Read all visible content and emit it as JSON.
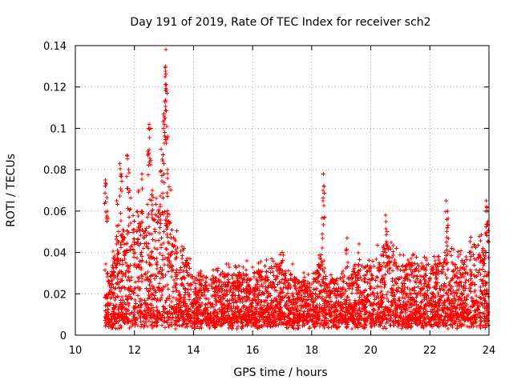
{
  "chart_data": {
    "type": "scatter",
    "title": "Day 191 of 2019, Rate Of TEC Index for receiver sch2",
    "xlabel": "GPS time / hours",
    "ylabel": "ROTI / TECUs",
    "xlim": [
      10,
      24
    ],
    "ylim": [
      0,
      0.14
    ],
    "xticks": [
      10,
      12,
      14,
      16,
      18,
      20,
      22,
      24
    ],
    "yticks": [
      0,
      0.02,
      0.04,
      0.06,
      0.08,
      0.1,
      0.12,
      0.14
    ],
    "xtick_labels": [
      "10",
      "12",
      "14",
      "16",
      "18",
      "20",
      "22",
      "24"
    ],
    "ytick_labels": [
      "0",
      "0.02",
      "0.04",
      "0.06",
      "0.08",
      "0.1",
      "0.12",
      "0.14"
    ],
    "grid": true,
    "marker": "+",
    "series": [
      {
        "name": "ROTI sch2",
        "color": "#ff0000",
        "envelope": [
          [
            11.0,
            0.035
          ],
          [
            11.2,
            0.03
          ],
          [
            11.4,
            0.045
          ],
          [
            11.6,
            0.05
          ],
          [
            11.8,
            0.055
          ],
          [
            12.0,
            0.05
          ],
          [
            12.2,
            0.055
          ],
          [
            12.4,
            0.058
          ],
          [
            12.6,
            0.06
          ],
          [
            12.8,
            0.062
          ],
          [
            13.0,
            0.07
          ],
          [
            13.2,
            0.065
          ],
          [
            13.4,
            0.045
          ],
          [
            13.6,
            0.04
          ],
          [
            13.8,
            0.035
          ],
          [
            14.0,
            0.03
          ],
          [
            14.5,
            0.028
          ],
          [
            15.0,
            0.03
          ],
          [
            15.5,
            0.03
          ],
          [
            16.0,
            0.03
          ],
          [
            16.5,
            0.032
          ],
          [
            17.0,
            0.035
          ],
          [
            17.5,
            0.028
          ],
          [
            18.0,
            0.025
          ],
          [
            18.3,
            0.04
          ],
          [
            18.5,
            0.03
          ],
          [
            19.0,
            0.028
          ],
          [
            19.5,
            0.035
          ],
          [
            20.0,
            0.035
          ],
          [
            20.5,
            0.045
          ],
          [
            21.0,
            0.035
          ],
          [
            21.5,
            0.035
          ],
          [
            22.0,
            0.032
          ],
          [
            22.5,
            0.038
          ],
          [
            23.0,
            0.035
          ],
          [
            23.5,
            0.045
          ],
          [
            24.0,
            0.04
          ]
        ],
        "peaks": [
          [
            11.02,
            0.075
          ],
          [
            11.05,
            0.073
          ],
          [
            11.08,
            0.06
          ],
          [
            11.4,
            0.065
          ],
          [
            11.5,
            0.083
          ],
          [
            11.55,
            0.078
          ],
          [
            11.75,
            0.087
          ],
          [
            11.8,
            0.08
          ],
          [
            11.85,
            0.07
          ],
          [
            12.15,
            0.07
          ],
          [
            12.25,
            0.078
          ],
          [
            12.45,
            0.089
          ],
          [
            12.48,
            0.1
          ],
          [
            12.5,
            0.102
          ],
          [
            12.55,
            0.1
          ],
          [
            12.6,
            0.07
          ],
          [
            12.9,
            0.09
          ],
          [
            12.95,
            0.085
          ],
          [
            12.98,
            0.1
          ],
          [
            13.0,
            0.107
          ],
          [
            13.02,
            0.113
          ],
          [
            13.04,
            0.125
          ],
          [
            13.05,
            0.13
          ],
          [
            13.06,
            0.138
          ],
          [
            13.08,
            0.121
          ],
          [
            13.1,
            0.117
          ],
          [
            13.12,
            0.08
          ],
          [
            18.4,
            0.078
          ],
          [
            18.42,
            0.072
          ],
          [
            18.38,
            0.07
          ],
          [
            18.35,
            0.049
          ],
          [
            20.5,
            0.058
          ],
          [
            20.52,
            0.055
          ],
          [
            20.55,
            0.05
          ],
          [
            22.55,
            0.065
          ],
          [
            22.6,
            0.06
          ],
          [
            22.58,
            0.05
          ],
          [
            23.9,
            0.065
          ],
          [
            23.92,
            0.062
          ],
          [
            23.95,
            0.06
          ],
          [
            19.2,
            0.047
          ],
          [
            19.6,
            0.044
          ],
          [
            21.2,
            0.034
          ],
          [
            17.0,
            0.04
          ],
          [
            15.8,
            0.036
          ]
        ]
      }
    ]
  }
}
